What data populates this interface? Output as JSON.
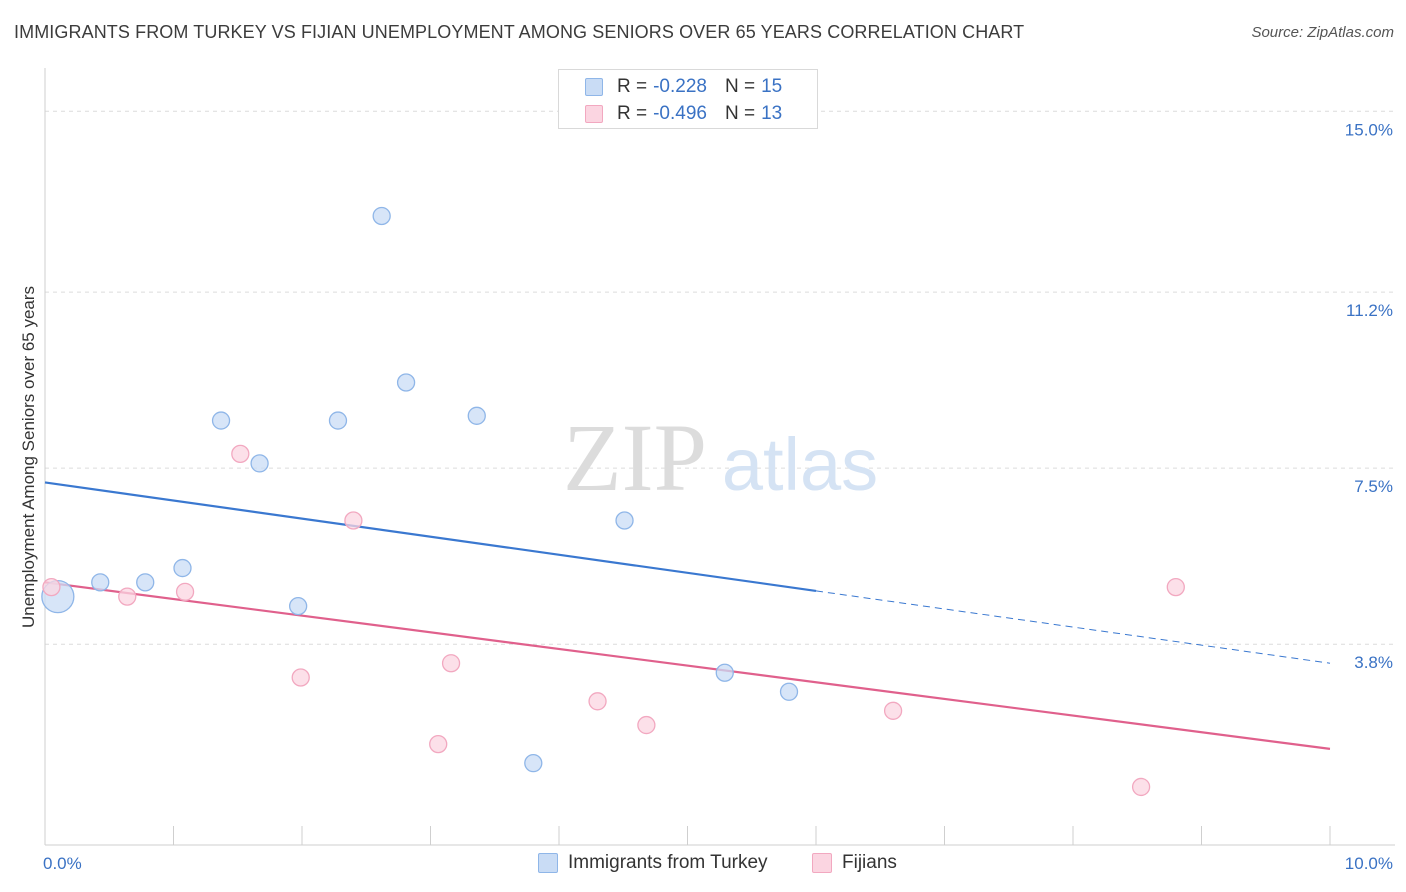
{
  "title": "IMMIGRANTS FROM TURKEY VS FIJIAN UNEMPLOYMENT AMONG SENIORS OVER 65 YEARS CORRELATION CHART",
  "source": "Source: ZipAtlas.com",
  "watermark": {
    "zip": "ZIP",
    "atlas": "atlas"
  },
  "legend": {
    "r_label": "R =",
    "n_label": "N =",
    "series": [
      {
        "r_value": "-0.228",
        "n_value": "15"
      },
      {
        "r_value": "-0.496",
        "n_value": "13"
      }
    ]
  },
  "bottom_legend": [
    "Immigrants from Turkey",
    "Fijians"
  ],
  "chart_data": {
    "type": "scatter",
    "title": "IMMIGRANTS FROM TURKEY VS FIJIAN UNEMPLOYMENT AMONG SENIORS OVER 65 YEARS CORRELATION CHART",
    "xlabel": "",
    "ylabel": "Unemployment Among Seniors over 65 years",
    "xlim": [
      0,
      10
    ],
    "ylim": [
      0,
      15.7
    ],
    "x_tick_labels": [
      {
        "value": 0,
        "label": "0.0%"
      },
      {
        "value": 10,
        "label": "10.0%"
      }
    ],
    "y_tick_labels": [
      {
        "value": 3.8,
        "label": "3.8%"
      },
      {
        "value": 7.5,
        "label": "7.5%"
      },
      {
        "value": 11.2,
        "label": "11.2%"
      },
      {
        "value": 15.0,
        "label": "15.0%"
      }
    ],
    "grid": true,
    "series": [
      {
        "name": "Immigrants from Turkey",
        "color": "#8fb6e8",
        "fill": "#c9dcf5",
        "line_color": "#3a78d0",
        "points": [
          {
            "x": 0.1,
            "y": 4.8,
            "size": "large"
          },
          {
            "x": 0.43,
            "y": 5.1
          },
          {
            "x": 0.78,
            "y": 5.1
          },
          {
            "x": 1.07,
            "y": 5.4
          },
          {
            "x": 1.37,
            "y": 8.5
          },
          {
            "x": 1.67,
            "y": 7.6
          },
          {
            "x": 1.97,
            "y": 4.6
          },
          {
            "x": 2.28,
            "y": 8.5
          },
          {
            "x": 2.62,
            "y": 12.8
          },
          {
            "x": 2.81,
            "y": 9.3
          },
          {
            "x": 3.36,
            "y": 8.6
          },
          {
            "x": 3.8,
            "y": 1.3
          },
          {
            "x": 4.51,
            "y": 6.4
          },
          {
            "x": 5.29,
            "y": 3.2
          },
          {
            "x": 5.79,
            "y": 2.8
          }
        ],
        "trend": {
          "x_start": 0,
          "y_start": 7.2,
          "x_solid_end": 6.0,
          "x_end": 10,
          "y_end": 3.4
        }
      },
      {
        "name": "Fijians",
        "color": "#f2a8c0",
        "fill": "#fbd5e1",
        "line_color": "#e0608c",
        "points": [
          {
            "x": 0.05,
            "y": 5.0
          },
          {
            "x": 0.64,
            "y": 4.8
          },
          {
            "x": 1.09,
            "y": 4.9
          },
          {
            "x": 1.52,
            "y": 7.8
          },
          {
            "x": 1.99,
            "y": 3.1
          },
          {
            "x": 2.4,
            "y": 6.4
          },
          {
            "x": 3.06,
            "y": 1.7
          },
          {
            "x": 3.16,
            "y": 3.4
          },
          {
            "x": 4.3,
            "y": 2.6
          },
          {
            "x": 4.68,
            "y": 2.1
          },
          {
            "x": 6.6,
            "y": 2.4
          },
          {
            "x": 8.53,
            "y": 0.8
          },
          {
            "x": 8.8,
            "y": 5.0
          }
        ],
        "trend": {
          "x_start": 0,
          "y_start": 5.1,
          "x_end": 10,
          "y_end": 1.6
        }
      }
    ]
  }
}
